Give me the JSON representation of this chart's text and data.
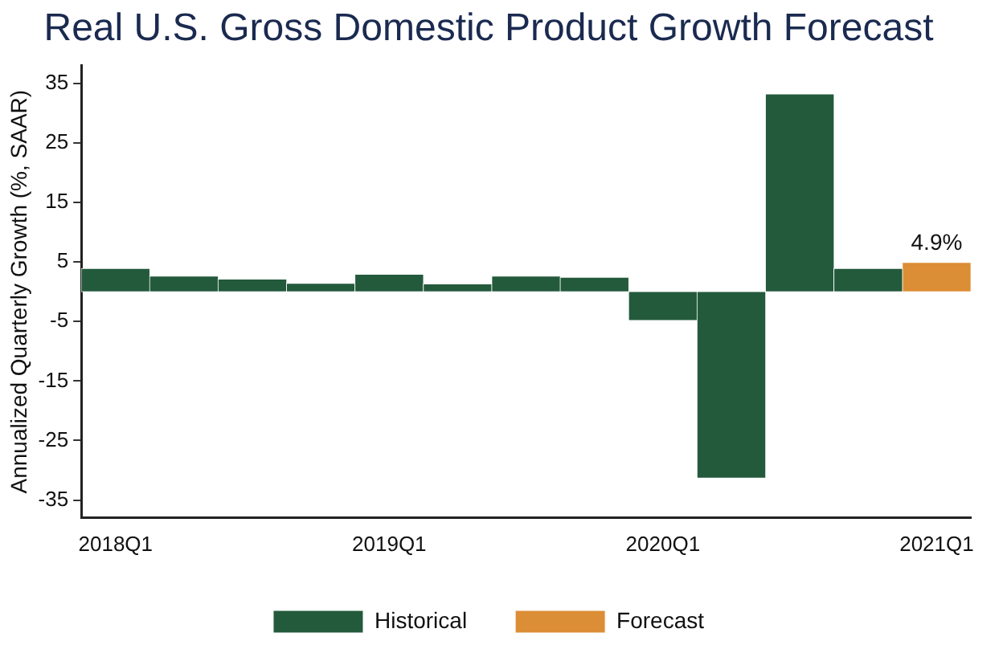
{
  "chart_data": {
    "type": "bar",
    "title": "Real U.S. Gross Domestic Product Growth Forecast",
    "ylabel": "Annualized Quarterly Growth (%, SAAR)",
    "categories": [
      "2018Q1",
      null,
      null,
      null,
      "2019Q1",
      null,
      null,
      null,
      "2020Q1",
      null,
      null,
      null,
      "2021Q1"
    ],
    "series": [
      {
        "name": "Historical",
        "color": "#245a3c",
        "values": [
          3.9,
          2.6,
          2.1,
          1.4,
          2.9,
          1.3,
          2.6,
          2.4,
          -4.8,
          -31.3,
          33.2,
          3.9,
          null
        ]
      },
      {
        "name": "Forecast",
        "color": "#dc8e36",
        "values": [
          null,
          null,
          null,
          null,
          null,
          null,
          null,
          null,
          null,
          null,
          null,
          null,
          4.9
        ],
        "value_labels": [
          null,
          null,
          null,
          null,
          null,
          null,
          null,
          null,
          null,
          null,
          null,
          null,
          "4.9%"
        ]
      }
    ],
    "ylim": [
      -38,
      38
    ],
    "yticks": [
      -35,
      -25,
      -15,
      -5,
      5,
      15,
      25,
      35
    ],
    "grid": false,
    "legend": "bottom"
  }
}
